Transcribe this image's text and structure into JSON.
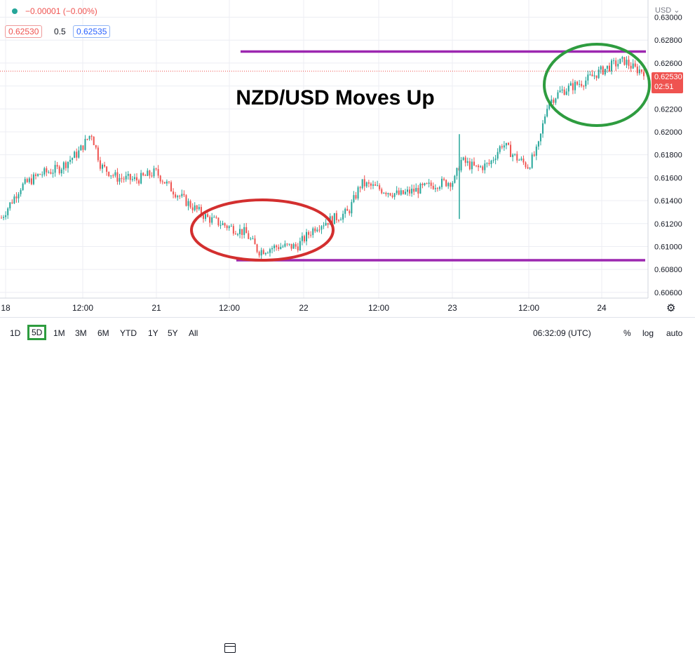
{
  "header": {
    "change": "−0.00001 (−0.00%)",
    "bid": "0.62530",
    "spread": "0.5",
    "ask": "0.62535",
    "currency": "USD"
  },
  "colors": {
    "candle_up": "#26a69a",
    "candle_down": "#ef5350",
    "level_line": "#9c27b0",
    "ellipse_low": "#d32f2f",
    "ellipse_high": "#2e9c3f",
    "price_tag": "#ef5350"
  },
  "chart_data": {
    "type": "candlestick",
    "title": "NZD/USD Moves Up",
    "ylim": [
      0.6055,
      0.6315
    ],
    "y_ticks": [
      "0.63000",
      "0.62800",
      "0.62600",
      "0.62400",
      "0.62200",
      "0.62000",
      "0.61800",
      "0.61600",
      "0.61400",
      "0.61200",
      "0.61000",
      "0.60800",
      "0.60600"
    ],
    "y_tick_values": [
      0.63,
      0.628,
      0.626,
      0.624,
      0.622,
      0.62,
      0.618,
      0.616,
      0.614,
      0.612,
      0.61,
      0.608,
      0.606
    ],
    "x_ticks": [
      "18",
      "12:00",
      "21",
      "12:00",
      "22",
      "12:00",
      "23",
      "12:00",
      "24"
    ],
    "price_path": [
      {
        "t": 0.0,
        "p": 0.6125
      },
      {
        "t": 0.03,
        "p": 0.6152
      },
      {
        "t": 0.06,
        "p": 0.6163
      },
      {
        "t": 0.09,
        "p": 0.6168
      },
      {
        "t": 0.12,
        "p": 0.6182
      },
      {
        "t": 0.14,
        "p": 0.6199
      },
      {
        "t": 0.155,
        "p": 0.617
      },
      {
        "t": 0.18,
        "p": 0.616
      },
      {
        "t": 0.21,
        "p": 0.6158
      },
      {
        "t": 0.24,
        "p": 0.6165
      },
      {
        "t": 0.265,
        "p": 0.615
      },
      {
        "t": 0.29,
        "p": 0.6138
      },
      {
        "t": 0.32,
        "p": 0.6125
      },
      {
        "t": 0.35,
        "p": 0.6118
      },
      {
        "t": 0.38,
        "p": 0.6112
      },
      {
        "t": 0.4,
        "p": 0.6096
      },
      {
        "t": 0.43,
        "p": 0.61
      },
      {
        "t": 0.46,
        "p": 0.61
      },
      {
        "t": 0.49,
        "p": 0.6118
      },
      {
        "t": 0.52,
        "p": 0.6125
      },
      {
        "t": 0.54,
        "p": 0.613
      },
      {
        "t": 0.56,
        "p": 0.6155
      },
      {
        "t": 0.59,
        "p": 0.615
      },
      {
        "t": 0.62,
        "p": 0.6145
      },
      {
        "t": 0.65,
        "p": 0.615
      },
      {
        "t": 0.68,
        "p": 0.6155
      },
      {
        "t": 0.705,
        "p": 0.6157
      },
      {
        "t": 0.715,
        "p": 0.6175
      },
      {
        "t": 0.74,
        "p": 0.6168
      },
      {
        "t": 0.76,
        "p": 0.6172
      },
      {
        "t": 0.78,
        "p": 0.619
      },
      {
        "t": 0.8,
        "p": 0.6178
      },
      {
        "t": 0.82,
        "p": 0.617
      },
      {
        "t": 0.835,
        "p": 0.6185
      },
      {
        "t": 0.85,
        "p": 0.6225
      },
      {
        "t": 0.87,
        "p": 0.6235
      },
      {
        "t": 0.89,
        "p": 0.624
      },
      {
        "t": 0.91,
        "p": 0.6245
      },
      {
        "t": 0.93,
        "p": 0.6252
      },
      {
        "t": 0.95,
        "p": 0.6258
      },
      {
        "t": 0.97,
        "p": 0.6262
      },
      {
        "t": 0.985,
        "p": 0.6255
      },
      {
        "t": 1.0,
        "p": 0.6253
      }
    ],
    "resistance": 0.627,
    "support": 0.6088,
    "last_price": "0.62530",
    "countdown": "02:51"
  },
  "toolbar": {
    "ranges": [
      "1D",
      "5D",
      "1M",
      "3M",
      "6M",
      "YTD",
      "1Y",
      "5Y",
      "All"
    ],
    "active_range": "5D",
    "time": "06:32:09 (UTC)",
    "percent": "%",
    "log": "log",
    "auto": "auto"
  }
}
